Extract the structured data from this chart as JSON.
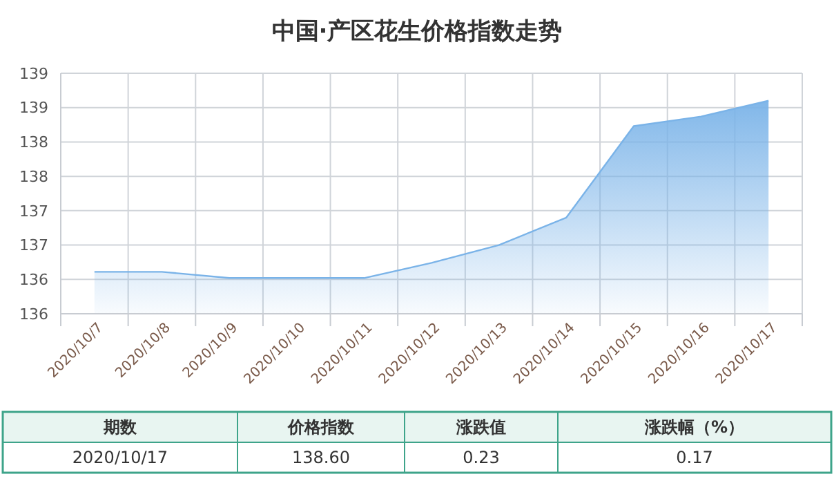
{
  "chart_data": {
    "type": "area",
    "title": "中国·产区花生价格指数走势",
    "categories": [
      "2020/10/7",
      "2020/10/8",
      "2020/10/9",
      "2020/10/10",
      "2020/10/11",
      "2020/10/12",
      "2020/10/13",
      "2020/10/14",
      "2020/10/15",
      "2020/10/16",
      "2020/10/17"
    ],
    "series": [
      {
        "color": "#7ab3e8",
        "values": [
          136.11,
          136.11,
          136.02,
          136.02,
          136.02,
          136.24,
          136.5,
          136.9,
          138.23,
          138.37,
          138.6
        ]
      }
    ],
    "ylim": [
      135.5,
      139
    ],
    "yticks": [
      {
        "value": 135.5,
        "label": "136"
      },
      {
        "value": 136,
        "label": "136"
      },
      {
        "value": 136.5,
        "label": "137"
      },
      {
        "value": 137,
        "label": "137"
      },
      {
        "value": 137.5,
        "label": "138"
      },
      {
        "value": 138,
        "label": "138"
      },
      {
        "value": 138.5,
        "label": "139"
      },
      {
        "value": 139,
        "label": "139"
      }
    ],
    "grid": true,
    "annotations": [
      "期数",
      "价格指数",
      "涨跌值",
      "涨跌幅（%）",
      "2020/10/17",
      "138.60",
      "0.23",
      "0.17"
    ]
  }
}
